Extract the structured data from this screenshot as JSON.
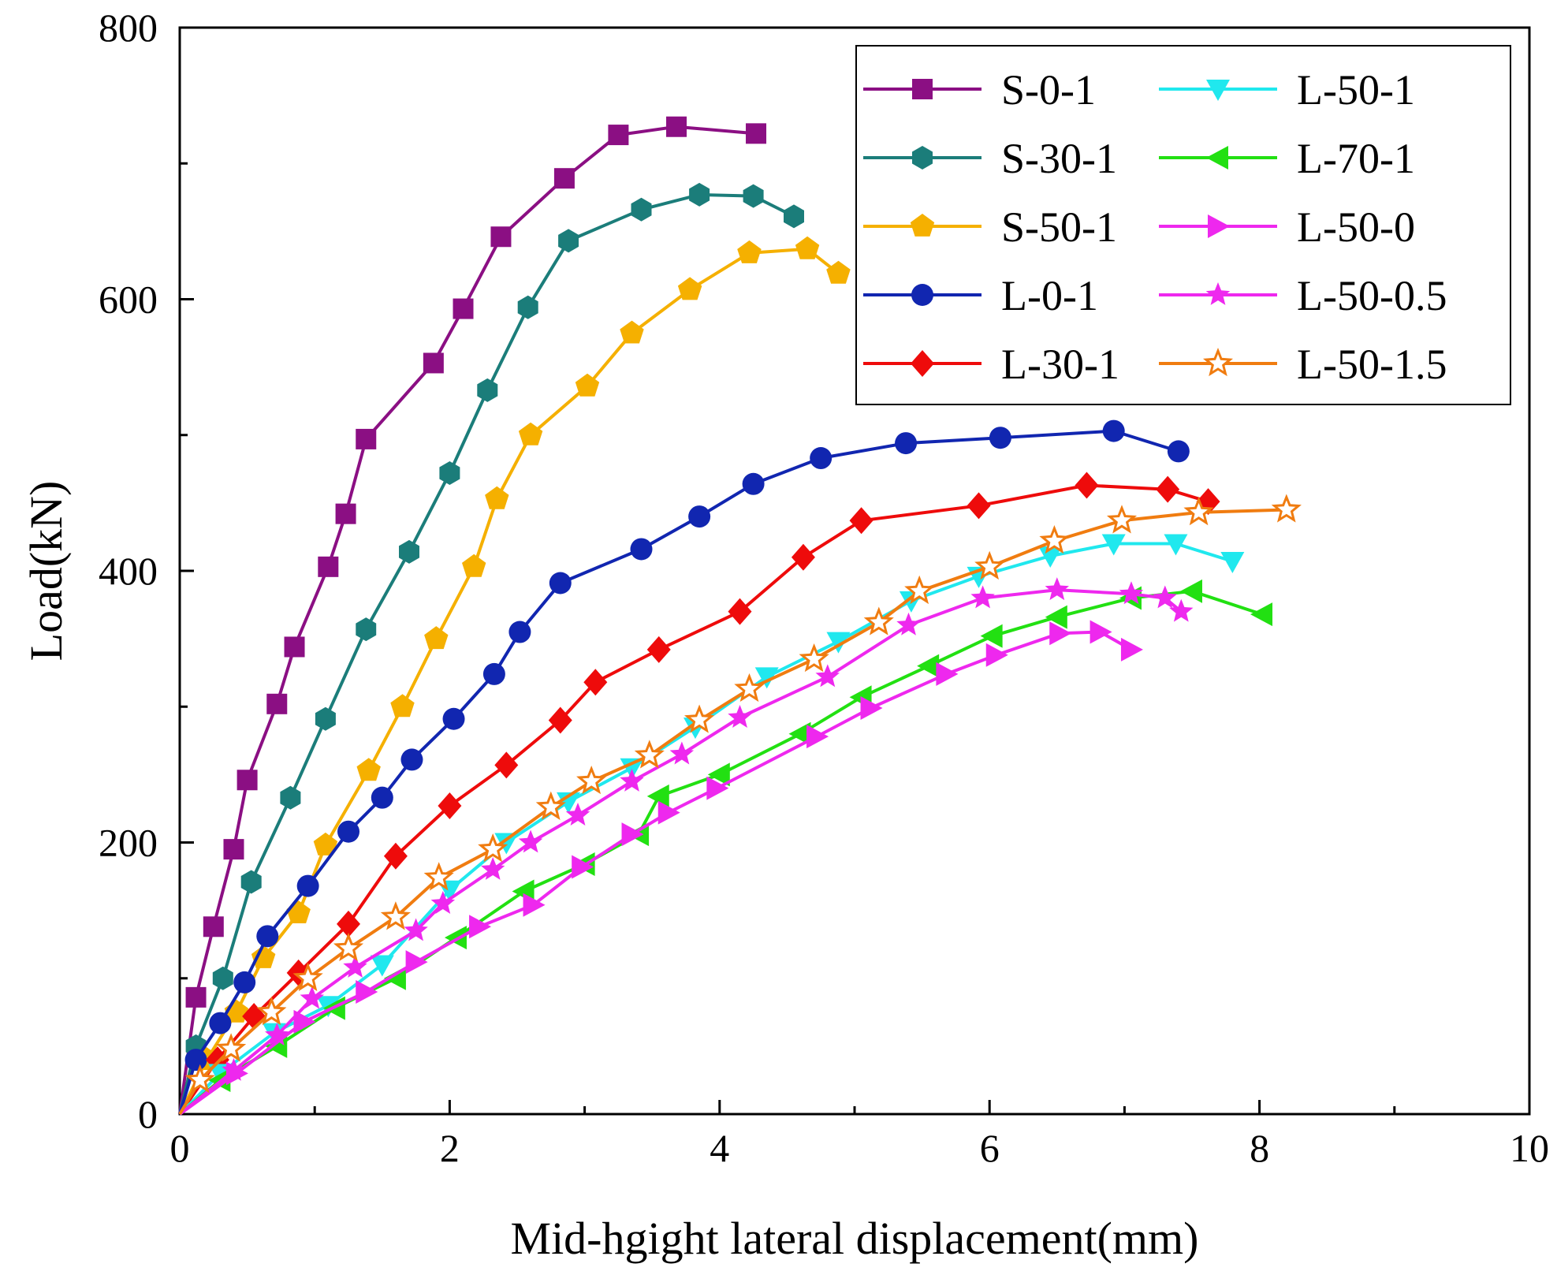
{
  "chart_data": {
    "type": "line",
    "title": "",
    "xlabel": "Mid-hgight lateral displacement(mm)",
    "ylabel": "Load(kN)",
    "xlim": [
      0,
      10
    ],
    "ylim": [
      0,
      800
    ],
    "xticks": [
      0,
      2,
      4,
      6,
      8,
      10
    ],
    "yticks": [
      0,
      200,
      400,
      600,
      800
    ],
    "grid": false,
    "legend_position": "top-right",
    "series": [
      {
        "name": "S-0-1",
        "color": "#8b0f83",
        "marker": "square",
        "x": [
          0,
          0.12,
          0.25,
          0.4,
          0.5,
          0.72,
          0.85,
          1.1,
          1.23,
          1.38,
          1.88,
          2.1,
          2.38,
          2.85,
          3.25,
          3.68,
          4.27
        ],
        "y": [
          0,
          86,
          138,
          195,
          246,
          302,
          344,
          403,
          442,
          497,
          553,
          593,
          646,
          689,
          721,
          727,
          722
        ]
      },
      {
        "name": "S-30-1",
        "color": "#1b7d7a",
        "marker": "hexagon",
        "x": [
          0,
          0.12,
          0.32,
          0.53,
          0.82,
          1.08,
          1.38,
          1.7,
          2.0,
          2.28,
          2.58,
          2.88,
          3.42,
          3.85,
          4.25,
          4.55
        ],
        "y": [
          0,
          50,
          100,
          171,
          233,
          291,
          357,
          414,
          472,
          533,
          594,
          643,
          666,
          677,
          676,
          661
        ]
      },
      {
        "name": "S-50-1",
        "color": "#f5b000",
        "marker": "pentagon",
        "x": [
          0,
          0.2,
          0.42,
          0.62,
          0.88,
          1.08,
          1.4,
          1.65,
          1.9,
          2.18,
          2.35,
          2.6,
          3.02,
          3.35,
          3.78,
          4.22,
          4.65,
          4.88
        ],
        "y": [
          0,
          40,
          75,
          115,
          148,
          198,
          253,
          300,
          350,
          403,
          453,
          500,
          536,
          575,
          607,
          634,
          637,
          619
        ]
      },
      {
        "name": "L-0-1",
        "color": "#1126b0",
        "marker": "circle",
        "x": [
          0,
          0.12,
          0.3,
          0.48,
          0.65,
          0.95,
          1.25,
          1.5,
          1.72,
          2.03,
          2.33,
          2.52,
          2.82,
          3.42,
          3.85,
          4.25,
          4.75,
          5.38,
          6.08,
          6.92,
          7.4
        ],
        "y": [
          0,
          40,
          67,
          97,
          131,
          168,
          208,
          233,
          261,
          291,
          324,
          355,
          391,
          416,
          440,
          464,
          483,
          494,
          498,
          503,
          488
        ]
      },
      {
        "name": "L-30-1",
        "color": "#ee0b0b",
        "marker": "diamond",
        "x": [
          0,
          0.28,
          0.55,
          0.88,
          1.25,
          1.6,
          2.0,
          2.42,
          2.82,
          3.08,
          3.55,
          4.15,
          4.62,
          5.05,
          5.92,
          6.72,
          7.32,
          7.62
        ],
        "y": [
          0,
          40,
          72,
          104,
          140,
          190,
          227,
          257,
          290,
          318,
          342,
          370,
          410,
          437,
          448,
          463,
          460,
          451
        ]
      },
      {
        "name": "L-50-1",
        "color": "#20e8ee",
        "marker": "triangle-down",
        "x": [
          0,
          0.3,
          0.7,
          1.1,
          1.5,
          2.0,
          2.42,
          2.88,
          3.35,
          3.82,
          4.35,
          4.88,
          5.42,
          5.92,
          6.45,
          6.92,
          7.38,
          7.8
        ],
        "y": [
          0,
          30,
          60,
          80,
          110,
          165,
          200,
          230,
          255,
          285,
          322,
          348,
          378,
          396,
          411,
          420,
          420,
          407
        ]
      },
      {
        "name": "L-70-1",
        "color": "#22e012",
        "marker": "triangle-left",
        "x": [
          0,
          0.3,
          0.72,
          1.15,
          1.6,
          2.05,
          2.55,
          3.0,
          3.4,
          3.55,
          4.0,
          4.6,
          5.05,
          5.55,
          6.02,
          6.5,
          7.05,
          7.5,
          8.02
        ],
        "y": [
          0,
          25,
          50,
          78,
          100,
          130,
          164,
          184,
          206,
          234,
          250,
          280,
          307,
          330,
          352,
          366,
          380,
          385,
          368
        ]
      },
      {
        "name": "L-50-0",
        "color": "#ee28ee",
        "marker": "triangle-right",
        "x": [
          0,
          0.42,
          0.92,
          1.38,
          1.75,
          2.22,
          2.62,
          2.98,
          3.35,
          3.62,
          3.98,
          4.72,
          5.12,
          5.68,
          6.05,
          6.52,
          6.82,
          7.05
        ],
        "y": [
          0,
          30,
          68,
          90,
          112,
          138,
          154,
          182,
          206,
          222,
          240,
          278,
          299,
          324,
          338,
          354,
          355,
          342
        ]
      },
      {
        "name": "L-50-0.5",
        "color": "#ee28ee",
        "marker": "star",
        "x": [
          0,
          0.4,
          0.72,
          0.98,
          1.3,
          1.75,
          1.95,
          2.32,
          2.6,
          2.95,
          3.35,
          3.72,
          4.15,
          4.8,
          5.4,
          5.95,
          6.5,
          7.05,
          7.3,
          7.42
        ],
        "y": [
          0,
          32,
          58,
          85,
          108,
          135,
          155,
          180,
          200,
          220,
          245,
          265,
          292,
          322,
          360,
          380,
          386,
          383,
          380,
          370
        ]
      },
      {
        "name": "L-50-1.5",
        "color": "#f07c10",
        "marker": "star-open",
        "x": [
          0,
          0.15,
          0.38,
          0.68,
          0.95,
          1.25,
          1.6,
          1.92,
          2.32,
          2.75,
          3.05,
          3.48,
          3.85,
          4.22,
          4.7,
          5.18,
          5.48,
          6.0,
          6.48,
          6.98,
          7.55,
          8.2
        ],
        "y": [
          0,
          25,
          48,
          75,
          100,
          122,
          145,
          174,
          195,
          226,
          245,
          264,
          290,
          313,
          335,
          362,
          385,
          403,
          422,
          437,
          443,
          445
        ]
      }
    ]
  }
}
